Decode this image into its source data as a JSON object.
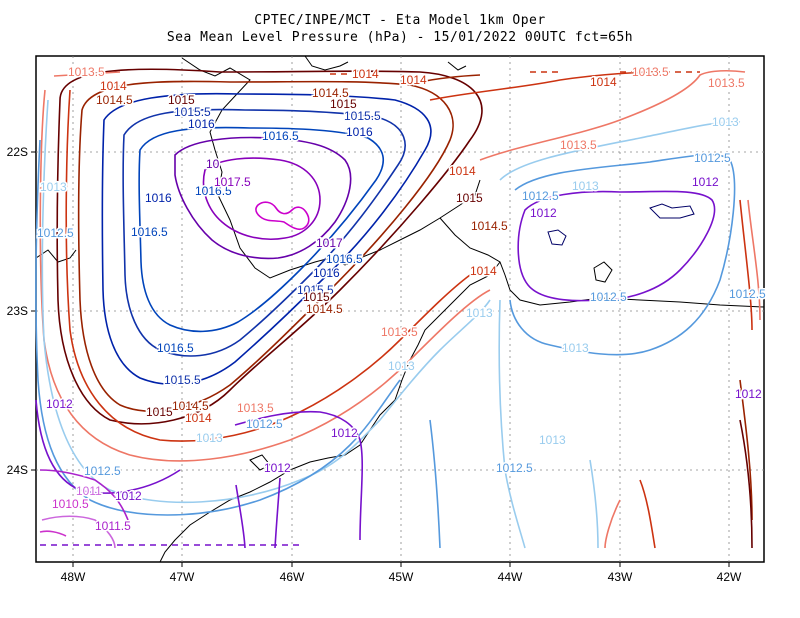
{
  "title": {
    "line1": "CPTEC/INPE/MCT -  Eta Model 1km Oper",
    "line2": "Sea Mean Level Pressure (hPa) - 15/01/2022 00UTC fct=65h"
  },
  "axes": {
    "x_ticks": [
      "48W",
      "47W",
      "46W",
      "45W",
      "44W",
      "43W",
      "42W"
    ],
    "y_ticks": [
      "22S",
      "23S",
      "24S"
    ]
  },
  "colors": {
    "1010.5": "#cc33cc",
    "1011": "#cc66dd",
    "1011.5": "#aa22cc",
    "1012": "#7711cc",
    "1012.5": "#5599dd",
    "1013": "#99ccee",
    "1013.5": "#ee7766",
    "1014": "#cc3311",
    "1014.5": "#992200",
    "1015": "#660000",
    "1015.5": "#1133aa",
    "1016": "#0022aa",
    "1016.5": "#0044bb",
    "1017": "#6600aa",
    "1017.5": "#8800bb",
    "1018": "#cc00cc"
  },
  "labels": [
    {
      "text": "1013.5",
      "level": "1013.5"
    },
    {
      "text": "1014",
      "level": "1014"
    },
    {
      "text": "1014.5",
      "level": "1014.5"
    },
    {
      "text": "1015",
      "level": "1015"
    },
    {
      "text": "1015.5",
      "level": "1015.5"
    },
    {
      "text": "1016",
      "level": "1016"
    },
    {
      "text": "1016.5",
      "level": "1016.5"
    },
    {
      "text": "1014.5",
      "level": "1014.5"
    },
    {
      "text": "1015",
      "level": "1015"
    },
    {
      "text": "1015.5",
      "level": "1015.5"
    },
    {
      "text": "1016",
      "level": "1016"
    },
    {
      "text": "1014",
      "level": "1014"
    },
    {
      "text": "1014",
      "level": "1014"
    },
    {
      "text": "1014",
      "level": "1014"
    },
    {
      "text": "1013.5",
      "level": "1013.5"
    },
    {
      "text": "1013.5",
      "level": "1013.5"
    },
    {
      "text": "1013",
      "level": "1013"
    },
    {
      "text": "1013.5",
      "level": "1013.5"
    },
    {
      "text": "1013",
      "level": "1013"
    },
    {
      "text": "1012.5",
      "level": "1012.5"
    },
    {
      "text": "1012",
      "level": "1012"
    },
    {
      "text": "1012.5",
      "level": "1012.5"
    },
    {
      "text": "1012",
      "level": "1012"
    },
    {
      "text": "1013",
      "level": "1013"
    },
    {
      "text": "1012.5",
      "level": "1012.5"
    },
    {
      "text": "1016",
      "level": "1016"
    },
    {
      "text": "1016.5",
      "level": "1016.5"
    },
    {
      "text": "1016.5",
      "level": "1016.5"
    },
    {
      "text": "1016.5",
      "level": "1016.5"
    },
    {
      "text": "1015.5",
      "level": "1015.5"
    },
    {
      "text": "1015",
      "level": "1015"
    },
    {
      "text": "1014.5",
      "level": "1014.5"
    },
    {
      "text": "1014",
      "level": "1014"
    },
    {
      "text": "1013.5",
      "level": "1013.5"
    },
    {
      "text": "1013",
      "level": "1013"
    },
    {
      "text": "1012.5",
      "level": "1012.5"
    },
    {
      "text": "1012",
      "level": "1012"
    },
    {
      "text": "1012.5",
      "level": "1012.5"
    },
    {
      "text": "1012",
      "level": "1012"
    },
    {
      "text": "1011",
      "level": "1011"
    },
    {
      "text": "1010.5",
      "level": "1010.5"
    },
    {
      "text": "1011.5",
      "level": "1011.5"
    },
    {
      "text": "1012",
      "level": "1012"
    },
    {
      "text": "1012",
      "level": "1012"
    },
    {
      "text": "1017.5",
      "level": "1017.5"
    },
    {
      "text": "10",
      "level": "1017"
    },
    {
      "text": "1017",
      "level": "1017"
    },
    {
      "text": "1016.5",
      "level": "1016.5"
    },
    {
      "text": "1016",
      "level": "1016"
    },
    {
      "text": "1015.5",
      "level": "1015.5"
    },
    {
      "text": "1015",
      "level": "1015"
    },
    {
      "text": "1014.5",
      "level": "1014.5"
    },
    {
      "text": "1014",
      "level": "1014"
    },
    {
      "text": "1015",
      "level": "1015"
    },
    {
      "text": "1014.5",
      "level": "1014.5"
    },
    {
      "text": "1014",
      "level": "1014"
    },
    {
      "text": "1013.5",
      "level": "1013.5"
    },
    {
      "text": "1013",
      "level": "1013"
    },
    {
      "text": "1013",
      "level": "1013"
    },
    {
      "text": "1012.5",
      "level": "1012.5"
    },
    {
      "text": "1013",
      "level": "1013"
    },
    {
      "text": "1013",
      "level": "1013"
    },
    {
      "text": "1012.5",
      "level": "1012.5"
    },
    {
      "text": "1012.5",
      "level": "1012.5"
    },
    {
      "text": "1012",
      "level": "1012"
    },
    {
      "text": "1012",
      "level": "1012"
    },
    {
      "text": "1012",
      "level": "1012"
    },
    {
      "text": "1014",
      "level": "1014"
    },
    {
      "text": "1014.",
      "level": "1014"
    }
  ]
}
